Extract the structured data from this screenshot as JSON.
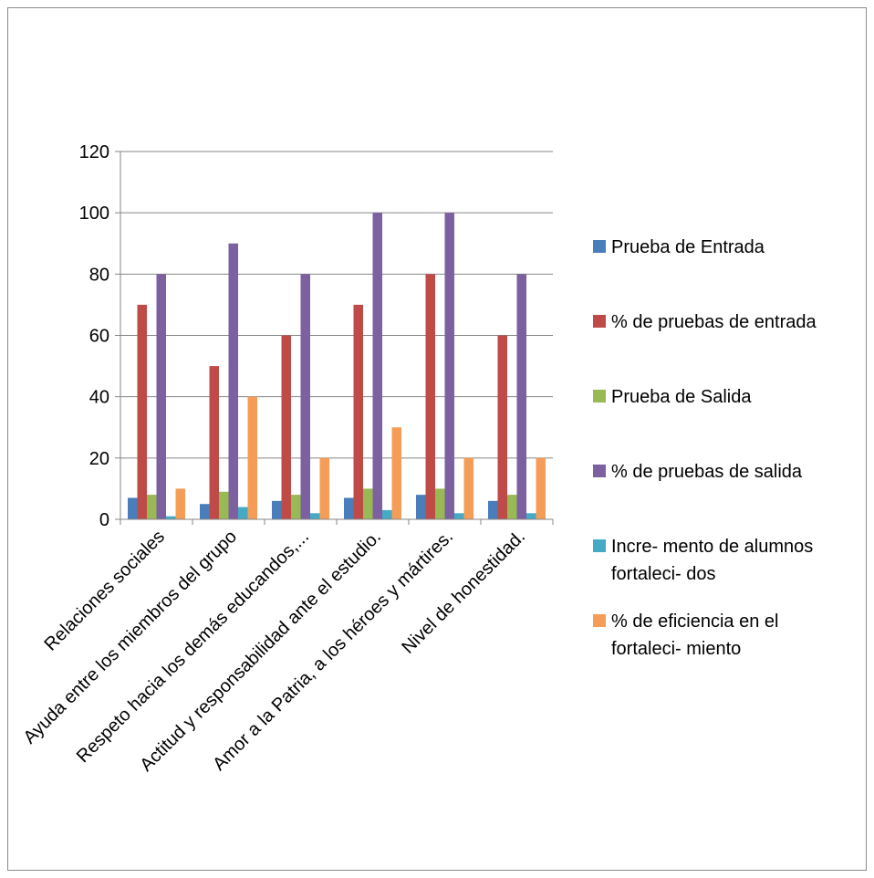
{
  "chart_data": {
    "type": "bar",
    "title": "",
    "xlabel": "",
    "ylabel": "",
    "ylim": [
      0,
      120
    ],
    "yticks": [
      0,
      20,
      40,
      60,
      80,
      100,
      120
    ],
    "grid": true,
    "legend_position": "right",
    "categories": [
      "Relaciones sociales",
      "Ayuda entre los miembros del grupo",
      "Respeto hacia los demás educandos,...",
      "Actitud y responsabilidad ante el estudio.",
      "Amor a la Patria, a los héroes y mártires.",
      "Nivel de honestidad."
    ],
    "series": [
      {
        "name": "Prueba de Entrada",
        "legend_lines": [
          "Prueba de Entrada"
        ],
        "color": "#4a7ebb",
        "values": [
          7,
          5,
          6,
          7,
          8,
          6
        ]
      },
      {
        "name": "% de pruebas de entrada",
        "legend_lines": [
          "% de pruebas de entrada"
        ],
        "color": "#be4b48",
        "values": [
          70,
          50,
          60,
          70,
          80,
          60
        ]
      },
      {
        "name": "Prueba de Salida",
        "legend_lines": [
          "Prueba de Salida"
        ],
        "color": "#98b954",
        "values": [
          8,
          9,
          8,
          10,
          10,
          8
        ]
      },
      {
        "name": "% de pruebas de salida",
        "legend_lines": [
          "% de pruebas de salida"
        ],
        "color": "#7d60a0",
        "values": [
          80,
          90,
          80,
          100,
          100,
          80
        ]
      },
      {
        "name": "Incre- mento de alumnos fortaleci- dos",
        "legend_lines": [
          "Incre- mento de alumnos",
          "fortaleci- dos"
        ],
        "color": "#46aac5",
        "values": [
          1,
          4,
          2,
          3,
          2,
          2
        ]
      },
      {
        "name": "% de eficiencia en el fortaleci- miento",
        "legend_lines": [
          "% de eficiencia en el",
          "fortaleci- miento"
        ],
        "color": "#f59d56",
        "values": [
          10,
          40,
          20,
          30,
          20,
          20
        ]
      }
    ]
  }
}
